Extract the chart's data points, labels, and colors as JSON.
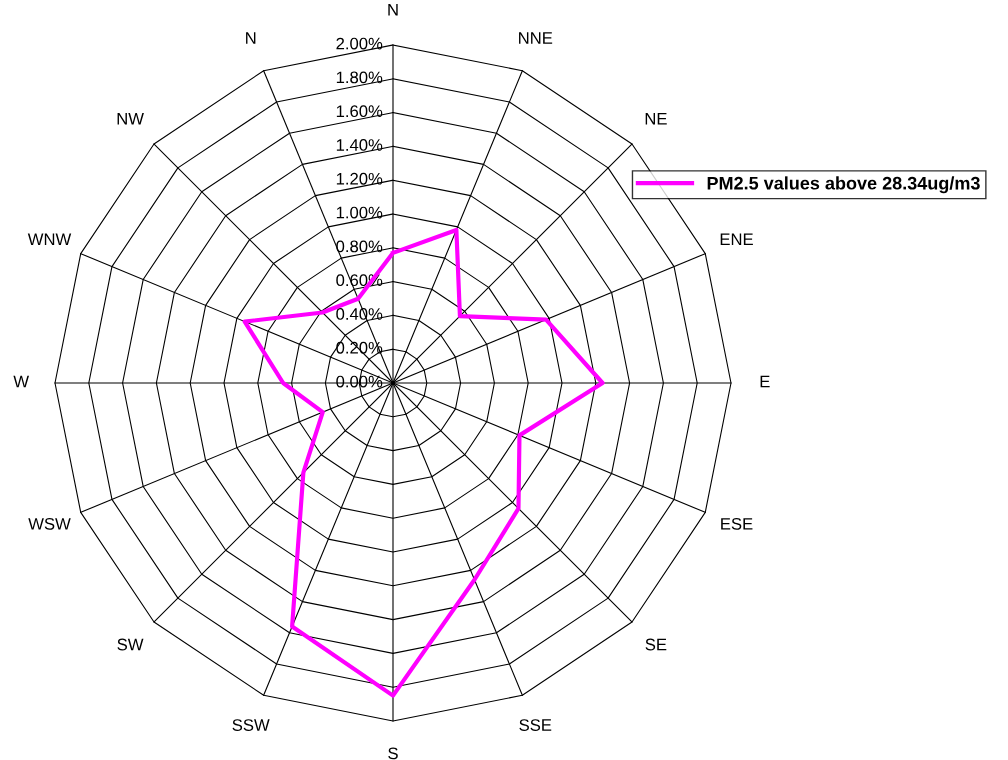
{
  "chart_data": {
    "type": "radar",
    "categories": [
      "N",
      "NNE",
      "NE",
      "ENE",
      "E",
      "ESE",
      "SE",
      "SSE",
      "S",
      "SSW",
      "SW",
      "WSW",
      "W",
      "WNW",
      "NW",
      "N"
    ],
    "series": [
      {
        "name": "PM2.5 values above 28.34ug/m3",
        "color": "#ff00ff",
        "values": [
          0.77,
          0.98,
          0.56,
          0.98,
          1.24,
          0.81,
          1.05,
          1.26,
          1.85,
          1.56,
          0.75,
          0.45,
          0.65,
          0.95,
          0.59,
          0.54
        ]
      }
    ],
    "ylim": [
      0,
      2
    ],
    "yticks": [
      {
        "value": 0,
        "label": "0.00%"
      },
      {
        "value": 0.2,
        "label": "0.20%"
      },
      {
        "value": 0.4,
        "label": "0.40%"
      },
      {
        "value": 0.6,
        "label": "0.60%"
      },
      {
        "value": 0.8,
        "label": "0.80%"
      },
      {
        "value": 1.0,
        "label": "1.00%"
      },
      {
        "value": 1.2,
        "label": "1.20%"
      },
      {
        "value": 1.4,
        "label": "1.40%"
      },
      {
        "value": 1.6,
        "label": "1.60%"
      },
      {
        "value": 1.8,
        "label": "1.80%"
      },
      {
        "value": 2.0,
        "label": "2.00%"
      }
    ],
    "grid": true,
    "legend": "top right",
    "marker": "none",
    "line_style": "solid"
  }
}
